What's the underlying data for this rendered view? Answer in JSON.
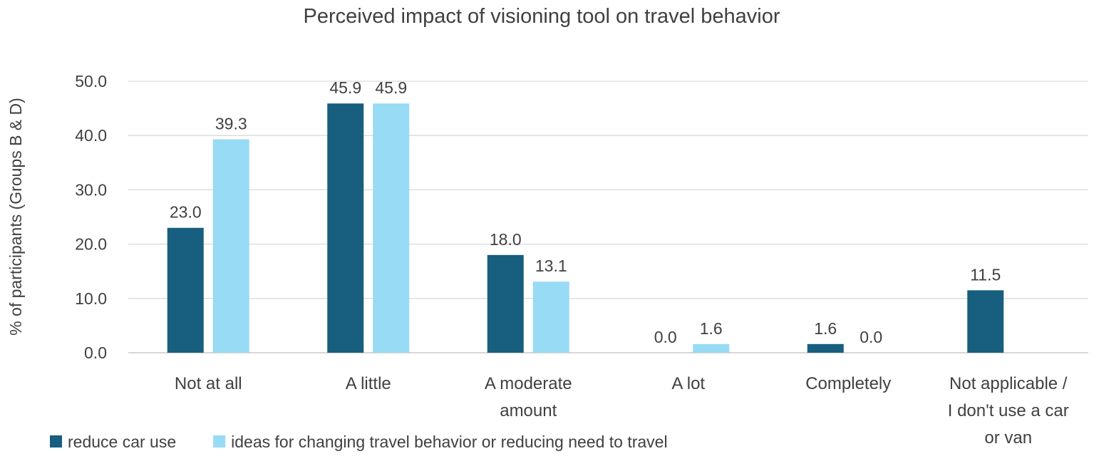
{
  "chart_data": {
    "type": "bar",
    "title": "Perceived impact of visioning tool on travel behavior",
    "xlabel": "",
    "ylabel": "% of participants (Groups B & D)",
    "ylim": [
      0,
      50
    ],
    "yticks": [
      0,
      10,
      20,
      30,
      40,
      50
    ],
    "ytick_labels": [
      "0.0",
      "10.0",
      "20.0",
      "30.0",
      "40.0",
      "50.0"
    ],
    "grid": true,
    "legend_position": "bottom-left",
    "categories": [
      [
        "Not at all"
      ],
      [
        "A little"
      ],
      [
        "A moderate",
        "amount"
      ],
      [
        "A lot"
      ],
      [
        "Completely"
      ],
      [
        "Not applicable /",
        "I don't use a car",
        "or van"
      ]
    ],
    "series": [
      {
        "name": "reduce car use",
        "color": "#175e7f",
        "values": [
          23.0,
          45.9,
          18.0,
          0.0,
          1.6,
          11.5
        ],
        "labels": [
          "23.0",
          "45.9",
          "18.0",
          "0.0",
          "1.6",
          "11.5"
        ]
      },
      {
        "name": "ideas for changing travel behavior or reducing need to travel",
        "color": "#97dbf5",
        "values": [
          39.3,
          45.9,
          13.1,
          1.6,
          0.0,
          null
        ],
        "labels": [
          "39.3",
          "45.9",
          "13.1",
          "1.6",
          "0.0",
          null
        ]
      }
    ]
  },
  "colors": {
    "grid": "#d9d9d9",
    "text": "#404040",
    "axis": "#bfbfbf"
  }
}
